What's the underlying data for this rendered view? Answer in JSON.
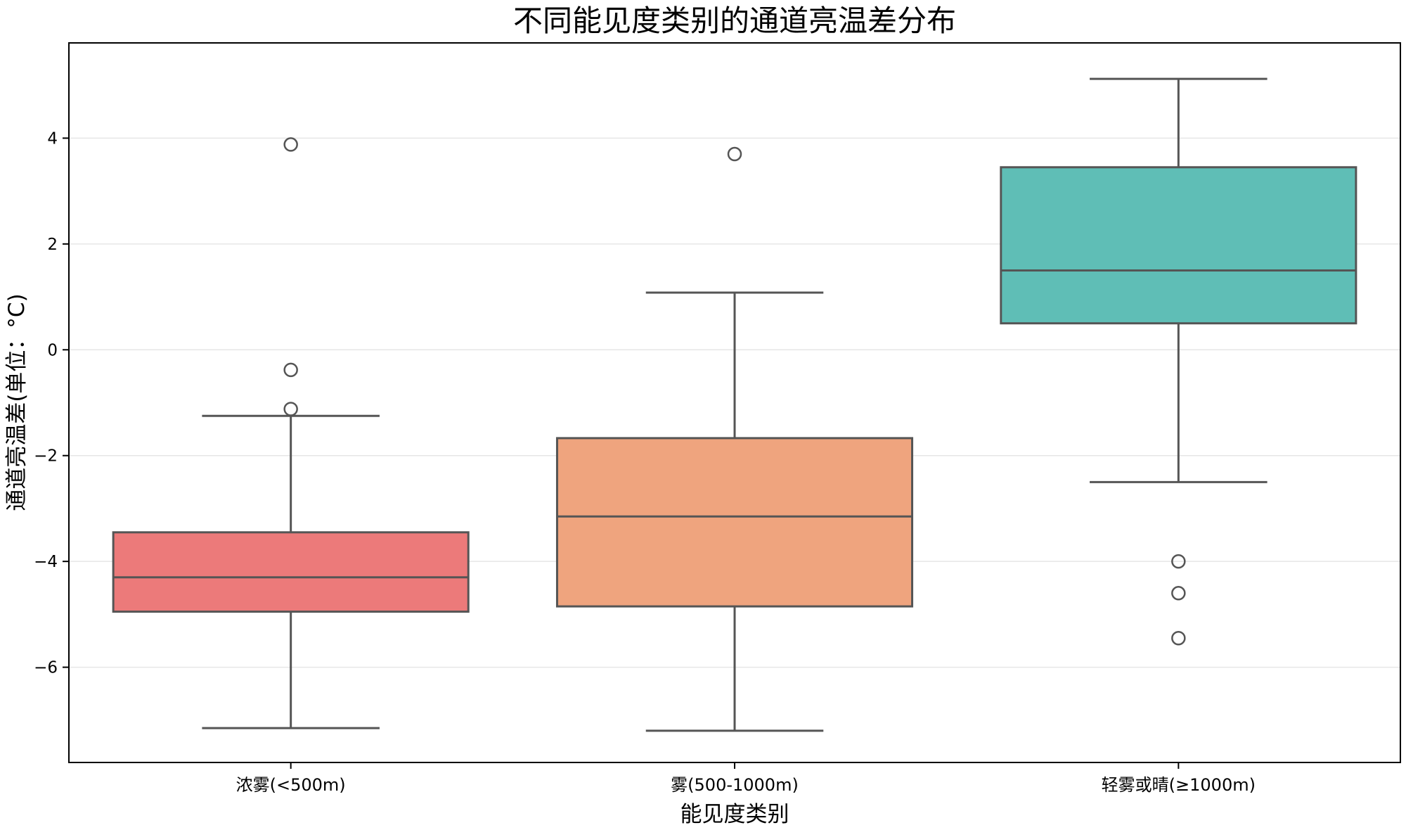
{
  "chart_data": {
    "type": "box",
    "title": "不同能见度类别的通道亮温差分布",
    "xlabel": "能见度类别",
    "ylabel": "通道亮温差(单位：°C)",
    "ylim": [
      -7.8,
      5.8
    ],
    "yticks": [
      -6,
      -4,
      -2,
      0,
      2,
      4
    ],
    "grid": "horizontal",
    "legend": "none",
    "categories": [
      "浓雾(<500m)",
      "雾(500-1000m)",
      "轻雾或晴(≥1000m)"
    ],
    "boxes": [
      {
        "category": "浓雾(<500m)",
        "whisker_low": -7.15,
        "q1": -4.95,
        "median": -4.3,
        "q3": -3.45,
        "whisker_high": -1.25,
        "outliers": [
          3.88,
          -0.38,
          -1.12
        ],
        "color": "#EC7A7A"
      },
      {
        "category": "雾(500-1000m)",
        "whisker_low": -7.2,
        "q1": -4.85,
        "median": -3.15,
        "q3": -1.67,
        "whisker_high": 1.08,
        "outliers": [
          3.7
        ],
        "color": "#EFA47E"
      },
      {
        "category": "轻雾或晴(≥1000m)",
        "whisker_low": -2.5,
        "q1": 0.5,
        "median": 1.5,
        "q3": 3.45,
        "whisker_high": 5.12,
        "outliers": [
          -4.0,
          -4.6,
          -5.45
        ],
        "color": "#5FBEB6"
      }
    ]
  }
}
